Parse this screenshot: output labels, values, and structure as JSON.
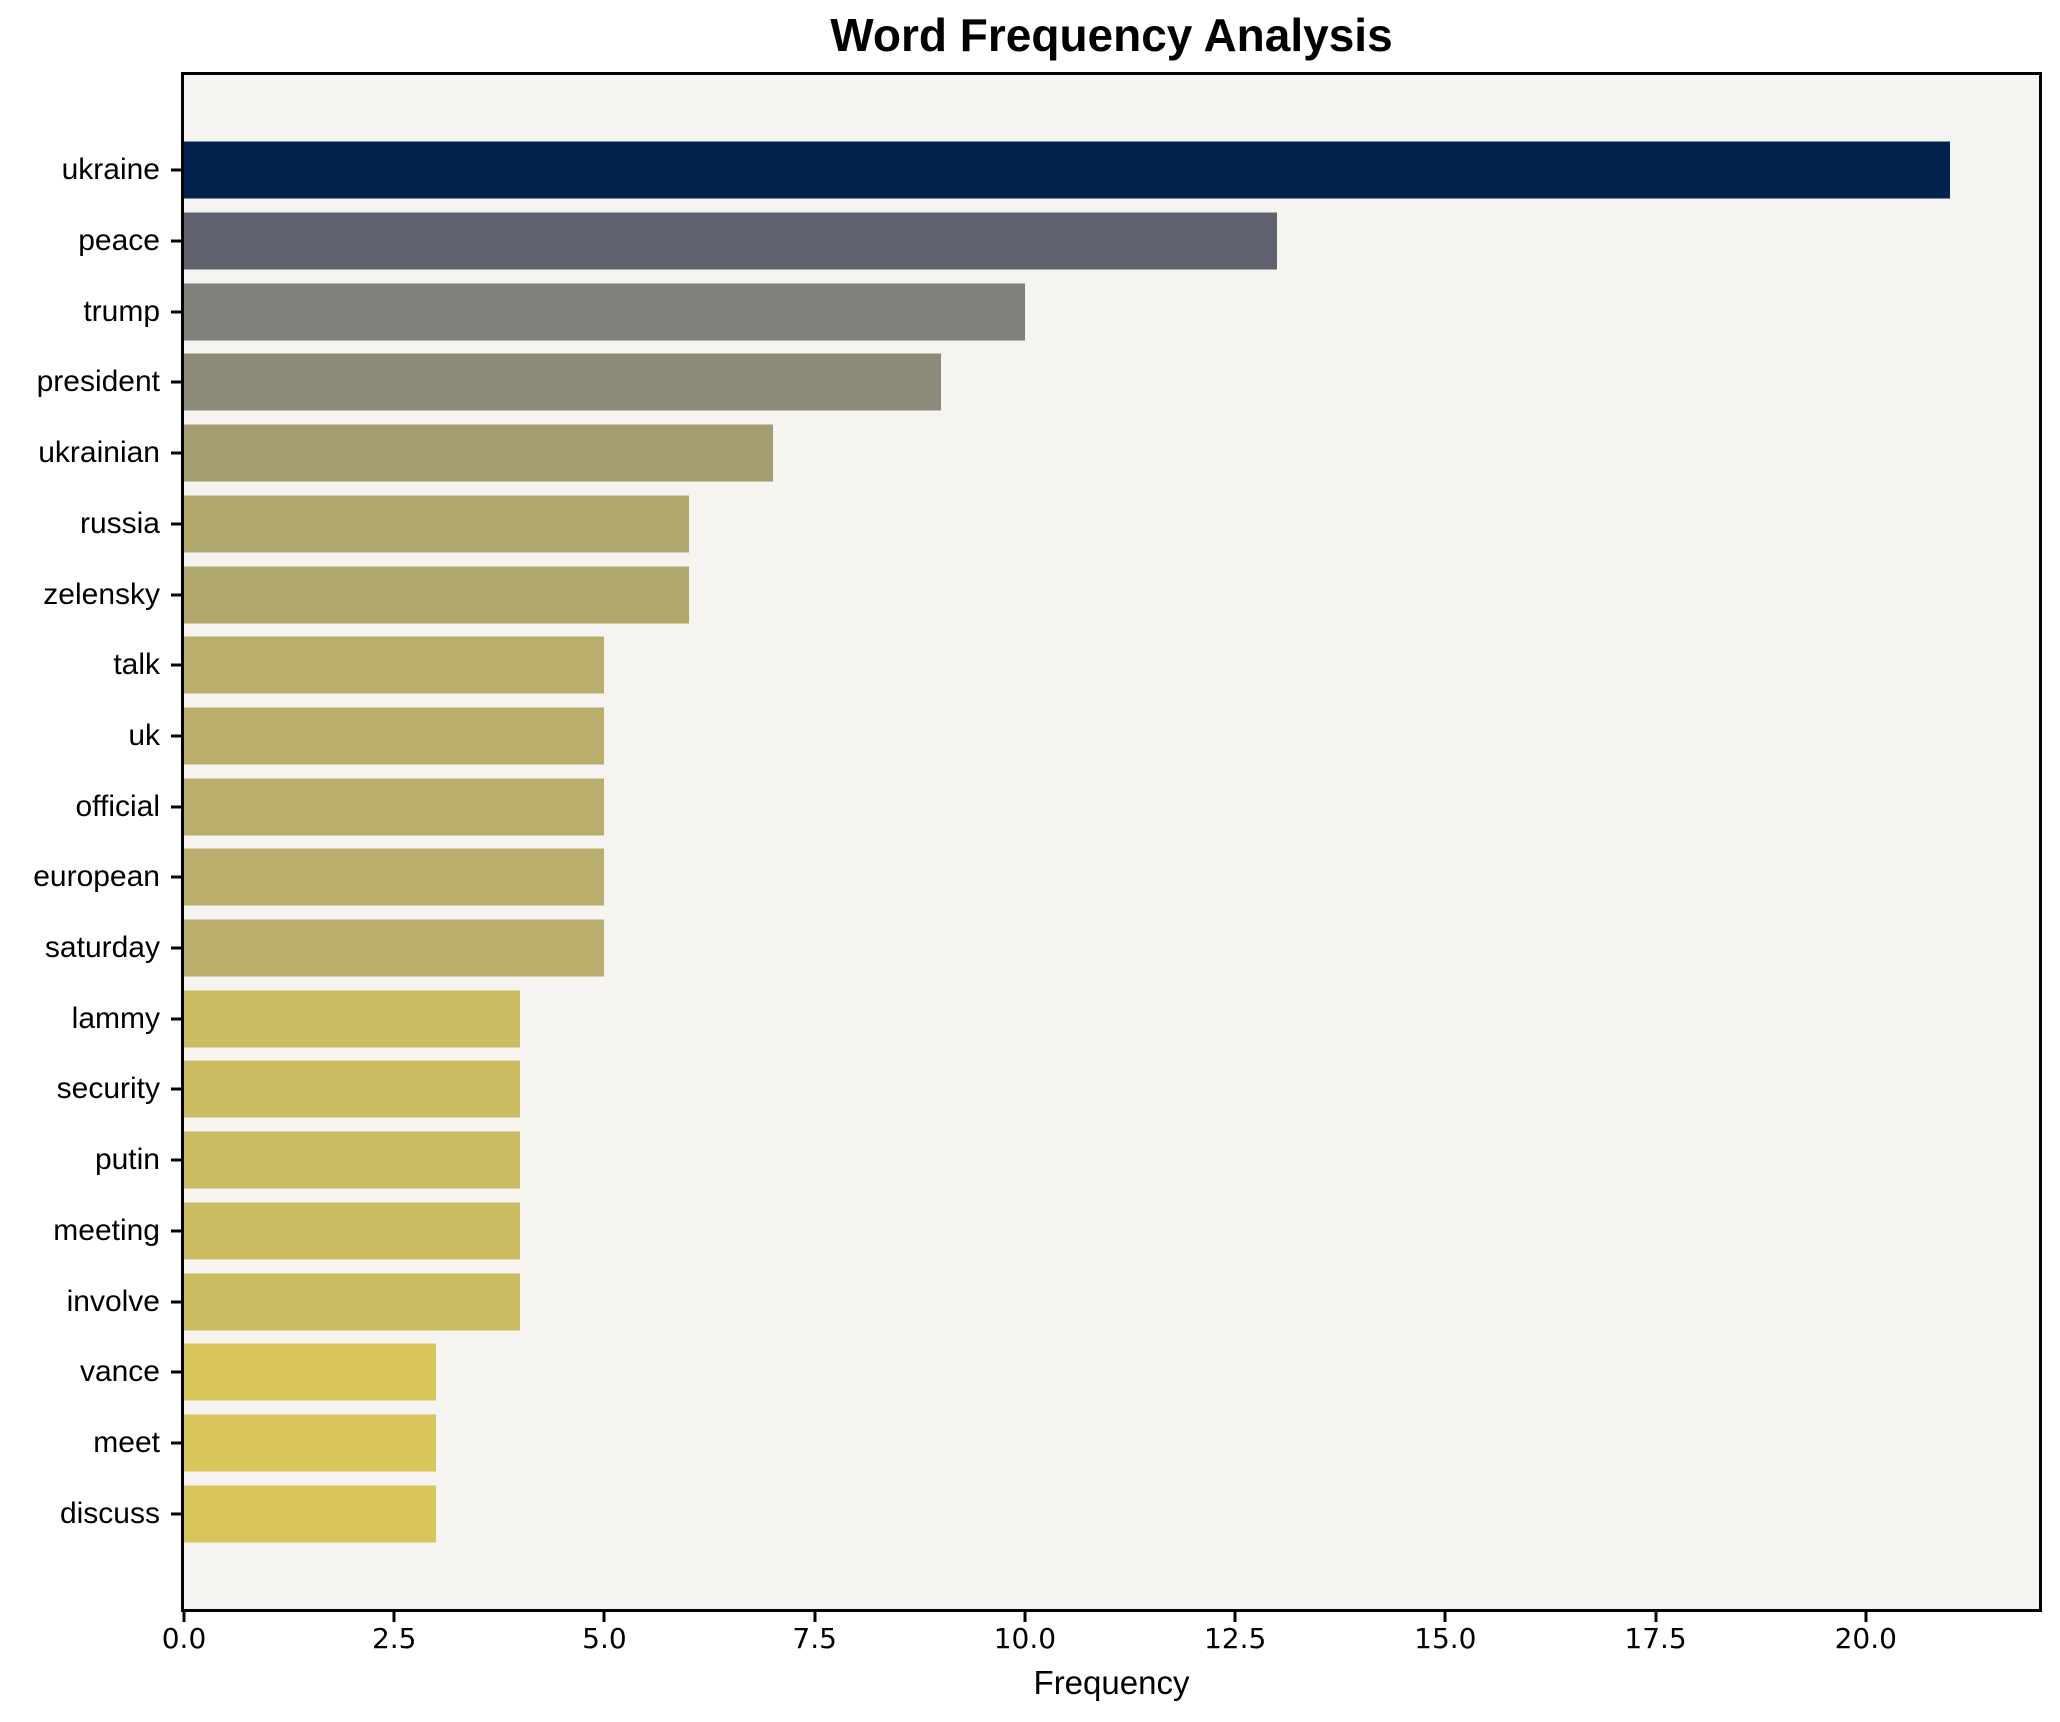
{
  "chart_data": {
    "type": "bar",
    "orientation": "horizontal",
    "title": "Word Frequency Analysis",
    "xlabel": "Frequency",
    "ylabel": "",
    "categories": [
      "ukraine",
      "peace",
      "trump",
      "president",
      "ukrainian",
      "russia",
      "zelensky",
      "talk",
      "uk",
      "official",
      "european",
      "saturday",
      "lammy",
      "security",
      "putin",
      "meeting",
      "involve",
      "vance",
      "meet",
      "discuss"
    ],
    "values": [
      21,
      13,
      10,
      9,
      7,
      6,
      6,
      5,
      5,
      5,
      5,
      5,
      4,
      4,
      4,
      4,
      4,
      3,
      3,
      3
    ],
    "bar_colors": [
      "#01234e",
      "#5f626e",
      "#80807a",
      "#8e8a79",
      "#a49d71",
      "#b0a76c",
      "#b0a76c",
      "#b9ae6c",
      "#b9ae6c",
      "#b9ae6c",
      "#b9ae6c",
      "#b9ae6c",
      "#cbbc62",
      "#cbbc62",
      "#cbbc62",
      "#cbbc62",
      "#cbbc62",
      "#d8c55c",
      "#d8c55c",
      "#d8c55c"
    ],
    "xlim": [
      0,
      22.06
    ],
    "xticks": [
      0,
      2.5,
      5,
      7.5,
      10,
      12.5,
      15,
      17.5,
      20
    ],
    "xtick_labels": [
      "0.0",
      "2.5",
      "5.0",
      "7.5",
      "10.0",
      "12.5",
      "15.0",
      "17.5",
      "20.0"
    ],
    "grid": false,
    "legend": "none",
    "colors": {
      "figure_bg": "#ffffff",
      "plot_bg": "#f5f4f1",
      "spine": "#000000",
      "text": "#000000"
    }
  }
}
